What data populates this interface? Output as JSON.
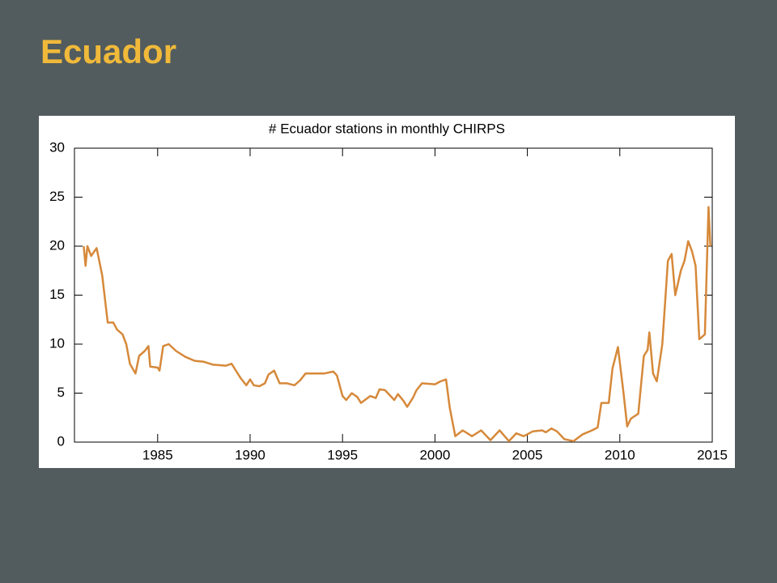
{
  "slide_title": "Ecuador",
  "chart_data": {
    "type": "line",
    "title": "# Ecuador stations in monthly CHIRPS",
    "x": [
      1981.0,
      1981.1,
      1981.2,
      1981.4,
      1981.7,
      1982.0,
      1982.3,
      1982.6,
      1982.8,
      1983.1,
      1983.3,
      1983.5,
      1983.8,
      1984.0,
      1984.3,
      1984.5,
      1984.6,
      1985.0,
      1985.1,
      1985.3,
      1985.6,
      1986.0,
      1986.5,
      1987.0,
      1987.5,
      1988.0,
      1988.7,
      1989.0,
      1989.2,
      1989.5,
      1989.8,
      1990.0,
      1990.2,
      1990.5,
      1990.8,
      1991.0,
      1991.3,
      1991.6,
      1992.0,
      1992.4,
      1992.7,
      1993.0,
      1994.0,
      1994.5,
      1994.7,
      1995.0,
      1995.2,
      1995.5,
      1995.8,
      1996.0,
      1996.5,
      1996.8,
      1997.0,
      1997.3,
      1997.6,
      1997.8,
      1998.0,
      1998.3,
      1998.5,
      1998.8,
      1999.0,
      1999.3,
      2000.0,
      2000.3,
      2000.6,
      2000.8,
      2001.1,
      2001.5,
      2002.0,
      2002.5,
      2003.0,
      2003.5,
      2004.0,
      2004.4,
      2004.8,
      2005.3,
      2005.8,
      2006.0,
      2006.3,
      2006.6,
      2007.0,
      2007.5,
      2008.0,
      2008.5,
      2008.8,
      2009.0,
      2009.4,
      2009.6,
      2009.9,
      2010.2,
      2010.4,
      2010.6,
      2011.0,
      2011.3,
      2011.5,
      2011.6,
      2011.8,
      2012.0,
      2012.3,
      2012.6,
      2012.8,
      2013.0,
      2013.3,
      2013.5,
      2013.7,
      2013.9,
      2014.1,
      2014.3,
      2014.6,
      2014.8,
      2014.9
    ],
    "values": [
      20,
      18,
      20,
      19,
      19.8,
      17,
      12.2,
      12.2,
      11.5,
      11,
      10,
      8,
      7,
      8.8,
      9.3,
      9.8,
      7.7,
      7.6,
      7.3,
      9.8,
      10,
      9.3,
      8.7,
      8.3,
      8.2,
      7.9,
      7.8,
      8,
      7.4,
      6.5,
      5.8,
      6.4,
      5.8,
      5.7,
      6,
      6.9,
      7.3,
      6,
      6,
      5.8,
      6.3,
      7,
      7,
      7.2,
      6.8,
      4.7,
      4.3,
      5,
      4.6,
      4,
      4.7,
      4.5,
      5.4,
      5.3,
      4.7,
      4.3,
      4.9,
      4.2,
      3.6,
      4.5,
      5.3,
      6,
      5.9,
      6.2,
      6.4,
      3.5,
      0.6,
      1.2,
      0.6,
      1.2,
      0.2,
      1.2,
      0.1,
      0.9,
      0.6,
      1.1,
      1.2,
      1,
      1.4,
      1.1,
      0.3,
      0.1,
      0.8,
      1.2,
      1.5,
      4,
      4,
      7.5,
      9.7,
      5,
      1.6,
      2.4,
      2.9,
      8.8,
      9.4,
      11.2,
      7,
      6.2,
      10,
      18.5,
      19.2,
      15,
      17.5,
      18.5,
      20.5,
      19.5,
      18,
      10.5,
      11,
      24,
      20
    ],
    "color": "#d6893a",
    "xlim": [
      1980.5,
      2015
    ],
    "xticks": [
      1985,
      1990,
      1995,
      2000,
      2005,
      2010,
      2015
    ],
    "ylim": [
      0,
      30
    ],
    "yticks": [
      0,
      5,
      10,
      15,
      20,
      25,
      30
    ]
  }
}
